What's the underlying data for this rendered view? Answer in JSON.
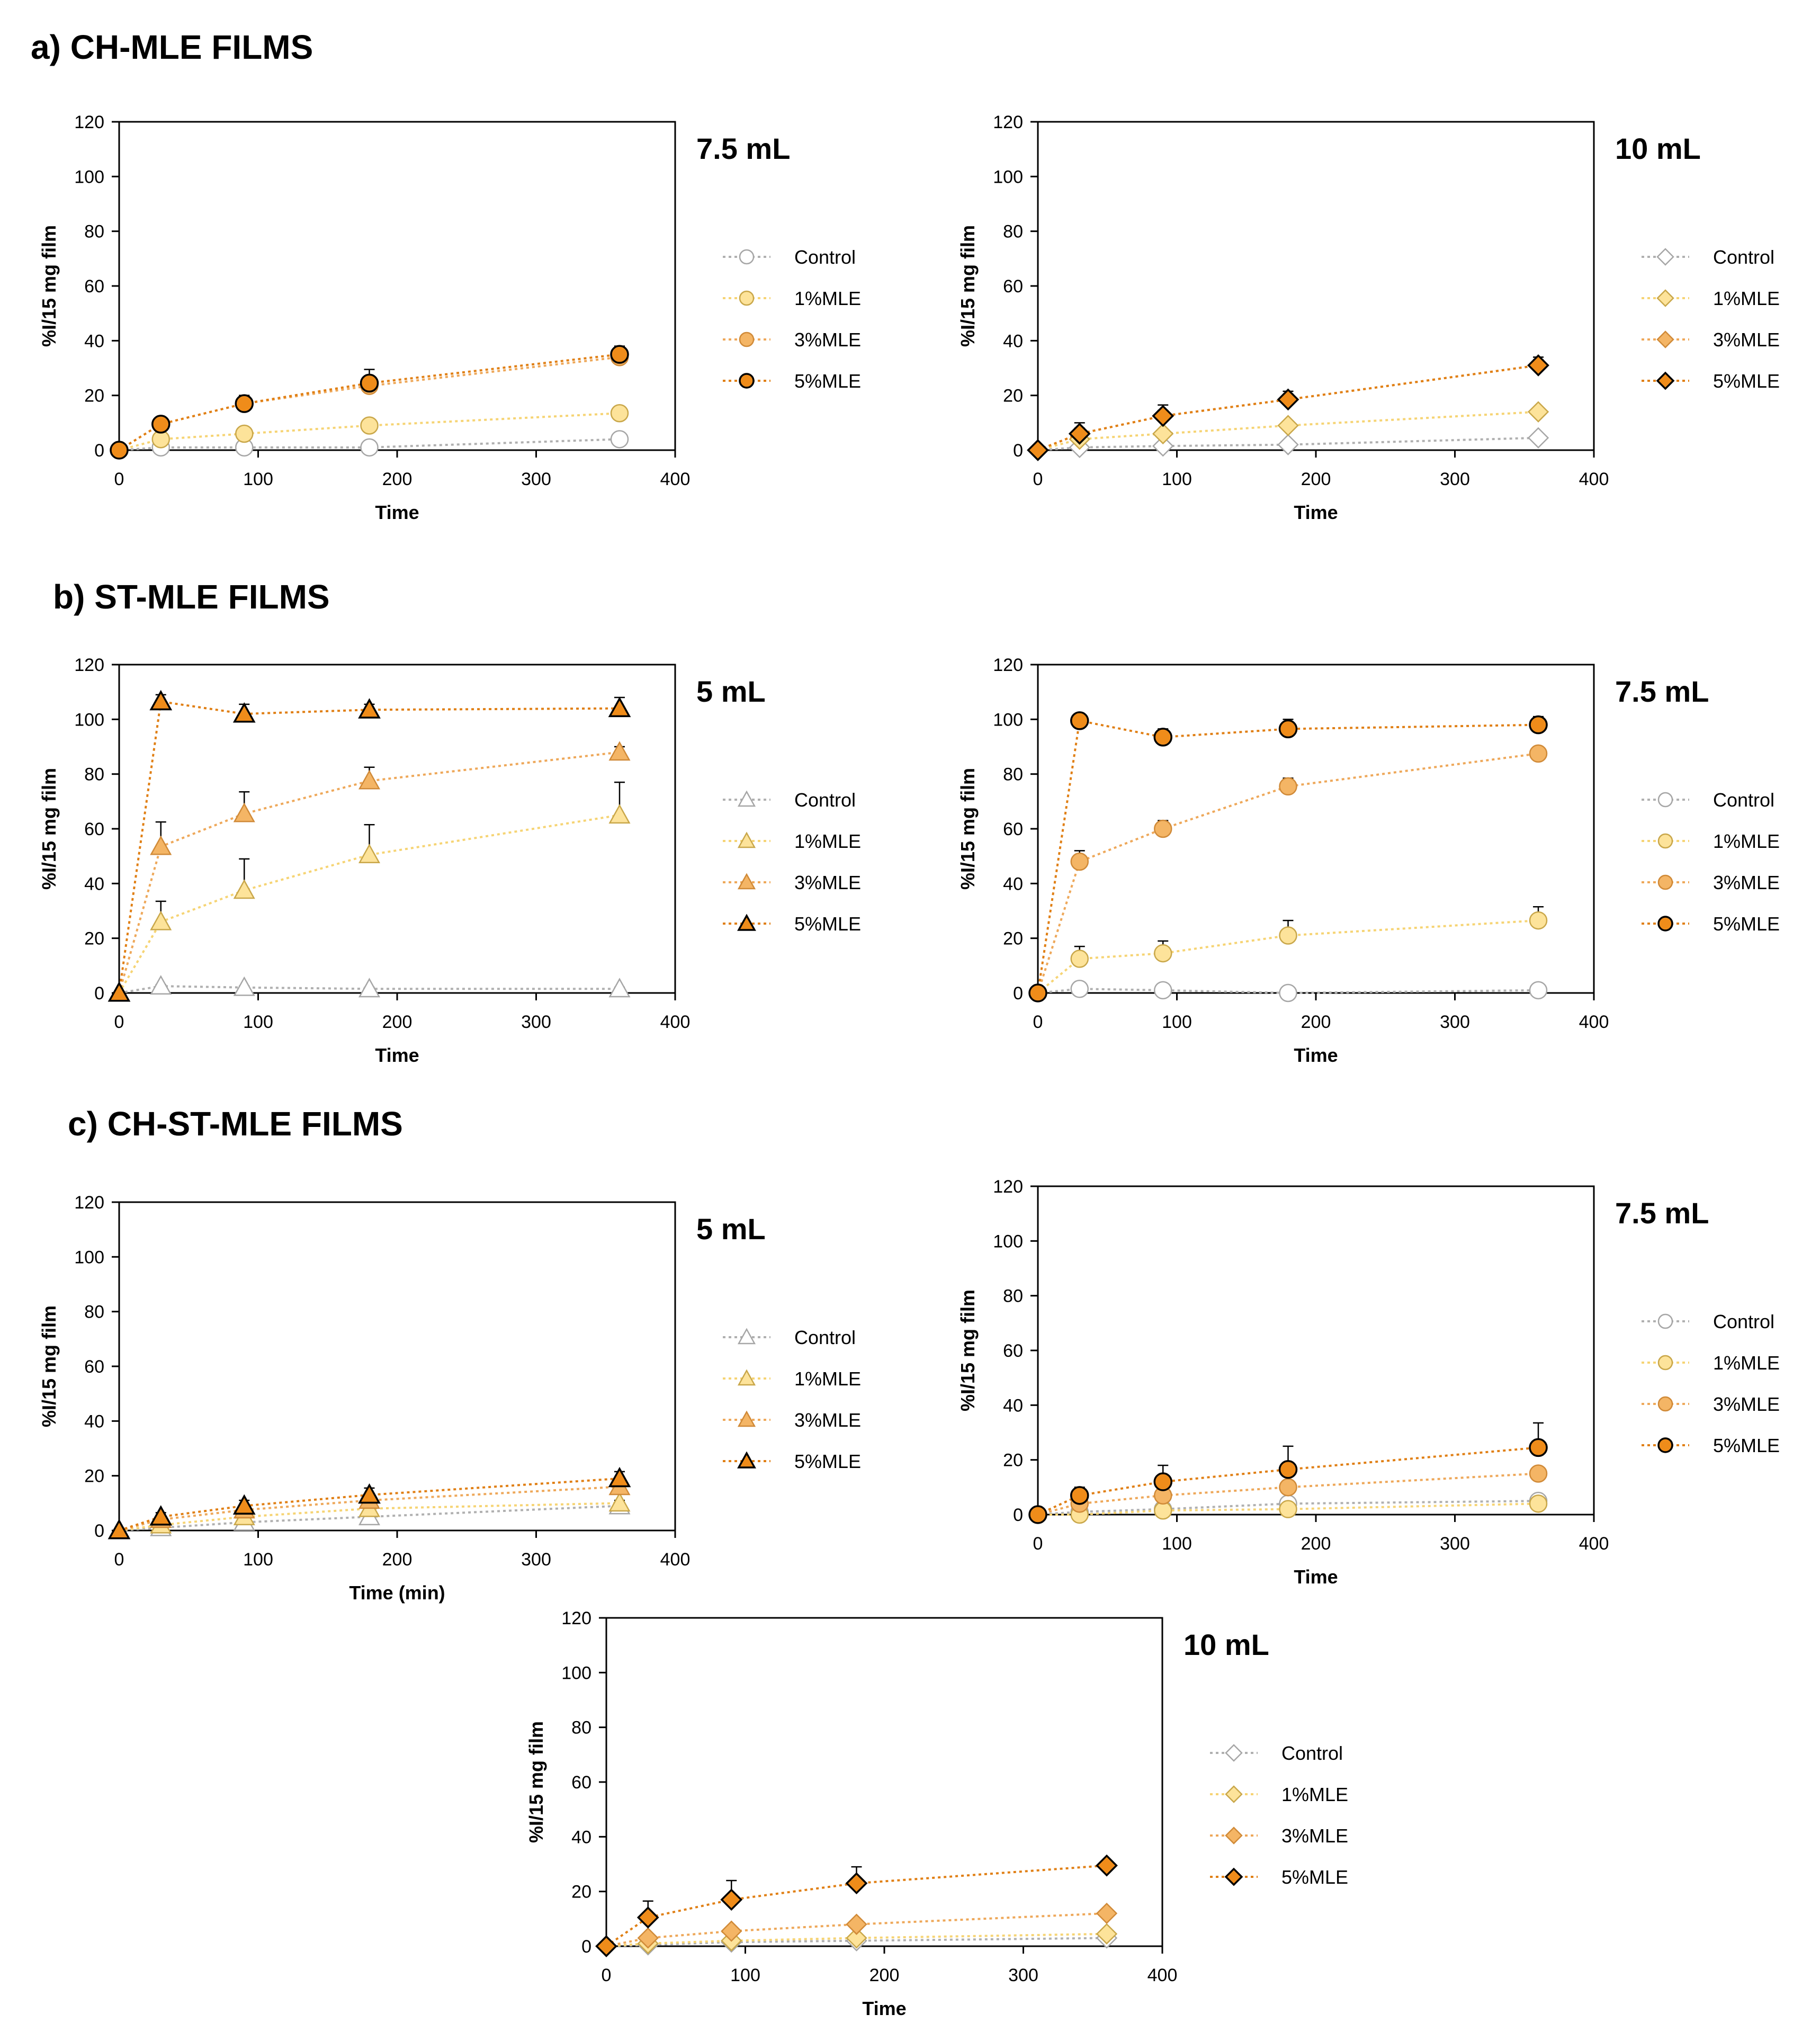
{
  "sections": {
    "a": "a) CH-MLE FILMS",
    "b": "b) ST-MLE FILMS",
    "c": "c) CH-ST-MLE FILMS"
  },
  "chart_data": [
    {
      "id": "a1",
      "type": "scatter",
      "volume_label": "7.5 mL",
      "marker": "circle",
      "xlabel": "Time",
      "ylabel": "%I/15 mg film",
      "xlim": [
        0,
        400
      ],
      "ylim": [
        0,
        120
      ],
      "xticks": [
        0,
        100,
        200,
        300,
        400
      ],
      "yticks": [
        0,
        20,
        40,
        60,
        80,
        100,
        120
      ],
      "x": [
        0,
        30,
        90,
        180,
        360
      ],
      "series": [
        {
          "name": "Control",
          "values": [
            0,
            1,
            1,
            1,
            4
          ],
          "errors": [
            0,
            0.5,
            0.5,
            0.5,
            1
          ]
        },
        {
          "name": "1%MLE",
          "values": [
            0,
            4,
            6,
            9,
            13.5
          ],
          "errors": [
            0,
            1,
            1,
            1,
            1
          ]
        },
        {
          "name": "3%MLE",
          "values": [
            0,
            9.5,
            17,
            23.5,
            34
          ],
          "errors": [
            0,
            1.5,
            2,
            3,
            2
          ]
        },
        {
          "name": "5%MLE",
          "values": [
            0,
            9.5,
            17,
            24.5,
            35
          ],
          "errors": [
            0,
            1.5,
            3,
            5,
            3
          ]
        }
      ]
    },
    {
      "id": "a2",
      "type": "scatter",
      "volume_label": "10 mL",
      "marker": "diamond",
      "xlabel": "Time",
      "ylabel": "%I/15 mg film",
      "xlim": [
        0,
        400
      ],
      "ylim": [
        0,
        120
      ],
      "xticks": [
        0,
        100,
        200,
        300,
        400
      ],
      "yticks": [
        0,
        20,
        40,
        60,
        80,
        100,
        120
      ],
      "x": [
        0,
        30,
        90,
        180,
        360
      ],
      "series": [
        {
          "name": "Control",
          "values": [
            0,
            1,
            1.5,
            2,
            4.5
          ],
          "errors": [
            0,
            0.5,
            0.5,
            0.5,
            0.5
          ]
        },
        {
          "name": "1%MLE",
          "values": [
            0,
            4,
            6,
            9,
            14
          ],
          "errors": [
            0,
            1,
            1,
            1,
            1
          ]
        },
        {
          "name": "3%MLE",
          "values": [
            0,
            6,
            12.5,
            18.5,
            31
          ],
          "errors": [
            0,
            2,
            2,
            2,
            2
          ]
        },
        {
          "name": "5%MLE",
          "values": [
            0,
            6,
            12.5,
            18.5,
            31
          ],
          "errors": [
            0,
            4,
            4,
            3,
            3
          ]
        }
      ]
    },
    {
      "id": "b1",
      "type": "scatter",
      "volume_label": "5 mL",
      "marker": "triangle",
      "xlabel": "Time",
      "ylabel": "%I/15 mg film",
      "xlim": [
        0,
        400
      ],
      "ylim": [
        0,
        120
      ],
      "xticks": [
        0,
        100,
        200,
        300,
        400
      ],
      "yticks": [
        0,
        20,
        40,
        60,
        80,
        100,
        120
      ],
      "x": [
        0,
        30,
        90,
        180,
        360
      ],
      "series": [
        {
          "name": "Control",
          "values": [
            0,
            2.5,
            2,
            1.5,
            1.5
          ],
          "errors": [
            0,
            0.5,
            0.5,
            0.5,
            0.5
          ]
        },
        {
          "name": "1%MLE",
          "values": [
            0,
            26,
            37.5,
            50.5,
            65
          ],
          "errors": [
            0,
            7.5,
            11.5,
            11,
            12
          ]
        },
        {
          "name": "3%MLE",
          "values": [
            0,
            53.5,
            65.5,
            77.5,
            88
          ],
          "errors": [
            0,
            9,
            8,
            5,
            2
          ]
        },
        {
          "name": "5%MLE",
          "values": [
            0,
            106.5,
            102,
            103.5,
            104
          ],
          "errors": [
            0,
            2.5,
            3.5,
            2,
            4
          ]
        }
      ]
    },
    {
      "id": "b2",
      "type": "scatter",
      "volume_label": "7.5 mL",
      "marker": "circle",
      "xlabel": "Time",
      "ylabel": "%I/15 mg film",
      "xlim": [
        0,
        400
      ],
      "ylim": [
        0,
        120
      ],
      "xticks": [
        0,
        100,
        200,
        300,
        400
      ],
      "yticks": [
        0,
        20,
        40,
        60,
        80,
        100,
        120
      ],
      "x": [
        0,
        30,
        90,
        180,
        360
      ],
      "series": [
        {
          "name": "Control",
          "values": [
            0,
            1.5,
            1,
            0,
            1
          ],
          "errors": [
            0,
            0.5,
            0.5,
            0.5,
            0.5
          ]
        },
        {
          "name": "1%MLE",
          "values": [
            0,
            12.5,
            14.5,
            21,
            26.5
          ],
          "errors": [
            0,
            4.5,
            4.5,
            5.5,
            5
          ]
        },
        {
          "name": "3%MLE",
          "values": [
            0,
            48,
            60,
            75.5,
            87.5
          ],
          "errors": [
            0,
            4,
            3,
            3,
            1
          ]
        },
        {
          "name": "5%MLE",
          "values": [
            0,
            99.5,
            93.5,
            96.5,
            98
          ],
          "errors": [
            0,
            2,
            3,
            3.5,
            3
          ]
        }
      ]
    },
    {
      "id": "c1",
      "type": "scatter",
      "volume_label": "5 mL",
      "marker": "triangle",
      "xlabel": "Time (min)",
      "ylabel": "%I/15 mg film",
      "xlim": [
        0,
        400
      ],
      "ylim": [
        0,
        120
      ],
      "xticks": [
        0,
        100,
        200,
        300,
        400
      ],
      "yticks": [
        0,
        20,
        40,
        60,
        80,
        100,
        120
      ],
      "x": [
        0,
        30,
        90,
        180,
        360
      ],
      "series": [
        {
          "name": "Control",
          "values": [
            0,
            1,
            3,
            5,
            9
          ],
          "errors": [
            0,
            0.5,
            1,
            1,
            1
          ]
        },
        {
          "name": "1%MLE",
          "values": [
            0,
            2,
            5,
            8,
            10
          ],
          "errors": [
            0,
            0.5,
            1,
            1,
            1
          ]
        },
        {
          "name": "3%MLE",
          "values": [
            0,
            4,
            7.5,
            11,
            16
          ],
          "errors": [
            0,
            1,
            1.5,
            2,
            2
          ]
        },
        {
          "name": "5%MLE",
          "values": [
            0,
            5,
            9,
            13,
            19
          ],
          "errors": [
            0,
            1.5,
            2,
            2.5,
            2.5
          ]
        }
      ]
    },
    {
      "id": "c2",
      "type": "scatter",
      "volume_label": "7.5 mL",
      "marker": "circle",
      "xlabel": "Time",
      "ylabel": "%I/15 mg film",
      "xlim": [
        0,
        400
      ],
      "ylim": [
        0,
        120
      ],
      "xticks": [
        0,
        100,
        200,
        300,
        400
      ],
      "yticks": [
        0,
        20,
        40,
        60,
        80,
        100,
        120
      ],
      "x": [
        0,
        30,
        90,
        180,
        360
      ],
      "series": [
        {
          "name": "Control",
          "values": [
            0,
            1,
            2,
            4,
            5
          ],
          "errors": [
            0,
            0.5,
            0.5,
            1,
            1
          ]
        },
        {
          "name": "1%MLE",
          "values": [
            0,
            0,
            1.5,
            2,
            4
          ],
          "errors": [
            0,
            0.5,
            0.5,
            1,
            1
          ]
        },
        {
          "name": "3%MLE",
          "values": [
            0,
            4,
            7,
            10,
            15
          ],
          "errors": [
            0,
            1,
            1.5,
            2,
            2
          ]
        },
        {
          "name": "5%MLE",
          "values": [
            0,
            7,
            12,
            16.5,
            24.5
          ],
          "errors": [
            0,
            3,
            6,
            8.5,
            9
          ]
        }
      ]
    },
    {
      "id": "c3",
      "type": "scatter",
      "volume_label": "10 mL",
      "marker": "diamond",
      "xlabel": "Time",
      "ylabel": "%I/15 mg film",
      "xlim": [
        0,
        400
      ],
      "ylim": [
        0,
        120
      ],
      "xticks": [
        0,
        100,
        200,
        300,
        400
      ],
      "yticks": [
        0,
        20,
        40,
        60,
        80,
        100,
        120
      ],
      "x": [
        0,
        30,
        90,
        180,
        360
      ],
      "series": [
        {
          "name": "Control",
          "values": [
            0,
            0.5,
            1.5,
            2,
            3
          ],
          "errors": [
            0,
            0.5,
            0.5,
            0.5,
            0.5
          ]
        },
        {
          "name": "1%MLE",
          "values": [
            0,
            1,
            2,
            3,
            4.5
          ],
          "errors": [
            0,
            0.5,
            0.5,
            0.5,
            0.5
          ]
        },
        {
          "name": "3%MLE",
          "values": [
            0,
            3,
            5.5,
            8,
            12
          ],
          "errors": [
            0,
            1,
            1,
            1,
            1
          ]
        },
        {
          "name": "5%MLE",
          "values": [
            0,
            10.5,
            17,
            23,
            29.5
          ],
          "errors": [
            0,
            6,
            7,
            6,
            1
          ]
        }
      ]
    }
  ],
  "colors": {
    "Control": {
      "fill": "#ffffff",
      "stroke": "#a6a6a6",
      "line": "#b0b0b0"
    },
    "1%MLE": {
      "fill": "#fde39a",
      "stroke": "#c9a74a",
      "line": "#f6d474"
    },
    "3%MLE": {
      "fill": "#f4b565",
      "stroke": "#d08a38",
      "line": "#eea85a"
    },
    "5%MLE": {
      "fill": "#ef8c1a",
      "stroke": "#000000",
      "line": "#e07f14"
    }
  }
}
